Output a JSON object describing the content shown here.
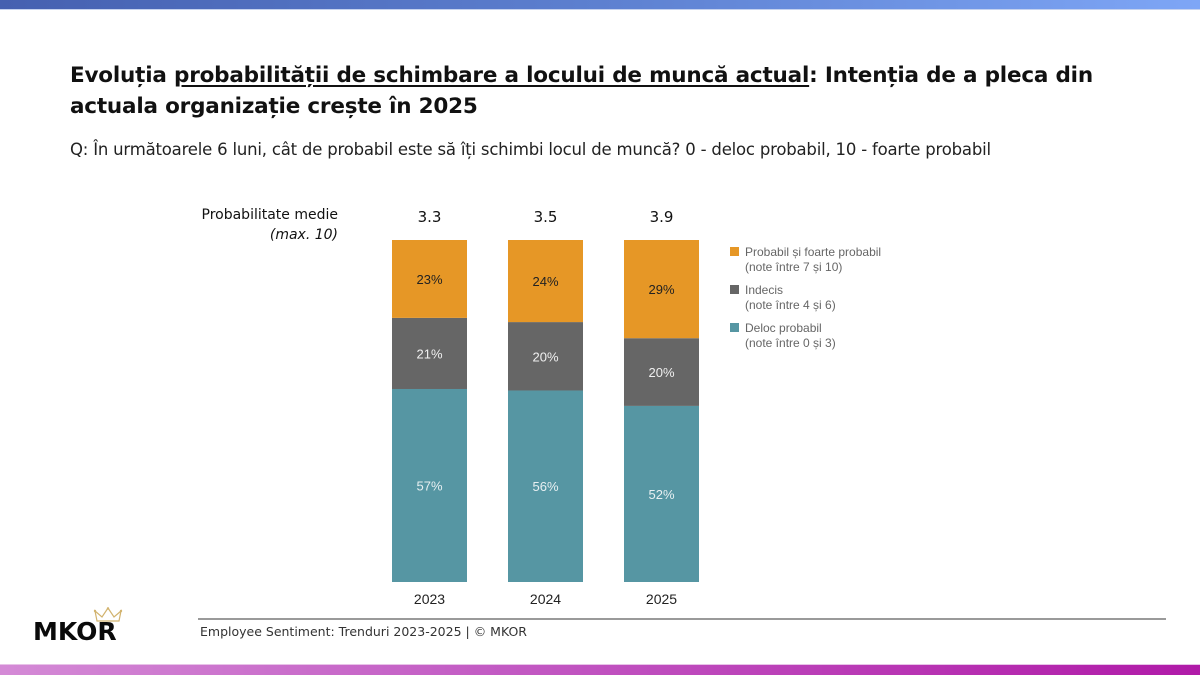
{
  "header": {
    "title_prefix": "Evoluția ",
    "title_underlined": "probabilității de schimbare a locului de muncă actual",
    "title_suffix": ": Intenția de a pleca din",
    "title_line2": "actuala organizație crește în 2025",
    "subtitle": "Q: În următoarele 6 luni, cât de probabil este să îți schimbi locul de muncă? 0 - deloc probabil, 10 - foarte probabil"
  },
  "average": {
    "label": "Probabilitate medie",
    "sublabel": "(max. 10)"
  },
  "footer": {
    "text": "Employee Sentiment: Trenduri 2023-2025 | © MKOR",
    "logo_text": "MKOR",
    "logo_icon": "crown-icon"
  },
  "colors": {
    "probabil": "#e69726",
    "indecis": "#666666",
    "deloc": "#5696a3",
    "top_bar_start": "#4560b0",
    "top_bar_end": "#7ea6f6",
    "bottom_bar_start": "#d48ad6",
    "bottom_bar_end": "#b01aa8"
  },
  "chart_data": {
    "type": "bar",
    "stacked": true,
    "orientation": "vertical",
    "title": "Evoluția probabilității de schimbare a locului de muncă actual: Intenția de a pleca din actuala organizație crește în 2025",
    "xlabel": "",
    "ylabel": "",
    "ylim": [
      0,
      100
    ],
    "grid": false,
    "legend_position": "right",
    "categories": [
      "2023",
      "2024",
      "2025"
    ],
    "series": [
      {
        "name": "Deloc probabil",
        "note": "(note între 0 și 3)",
        "color": "#5696a3",
        "label_color": "#e8f0f2",
        "values": [
          57,
          56,
          52
        ],
        "labels": [
          "57%",
          "56%",
          "52%"
        ]
      },
      {
        "name": "Indecis",
        "note": "(note între 4 și 6)",
        "color": "#666666",
        "label_color": "#f0f0f0",
        "values": [
          21,
          20,
          20
        ],
        "labels": [
          "21%",
          "20%",
          "20%"
        ]
      },
      {
        "name": "Probabil și foarte probabil",
        "note": "(note între 7 și 10)",
        "color": "#e69726",
        "label_color": "#222222",
        "values": [
          23,
          24,
          29
        ],
        "labels": [
          "23%",
          "24%",
          "29%"
        ]
      }
    ],
    "legend_order": [
      2,
      1,
      0
    ],
    "averages": {
      "label": "Probabilitate medie (max. 10)",
      "values": [
        3.3,
        3.5,
        3.9
      ],
      "labels": [
        "3.3",
        "3.5",
        "3.9"
      ]
    }
  }
}
